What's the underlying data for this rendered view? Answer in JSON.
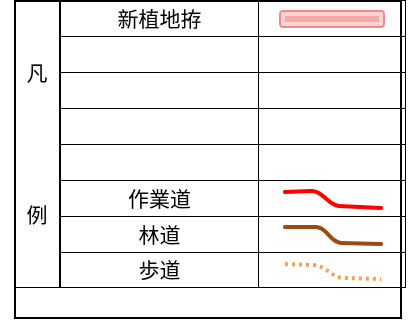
{
  "legend": {
    "heading_chars": [
      "凡",
      "例"
    ],
    "rows": [
      {
        "label": "新植地拵",
        "symbol": "pink-band-icon"
      },
      {
        "label": "",
        "symbol": ""
      },
      {
        "label": "",
        "symbol": ""
      },
      {
        "label": "",
        "symbol": ""
      },
      {
        "label": "",
        "symbol": ""
      },
      {
        "label": "作業道",
        "symbol": "red-road-icon"
      },
      {
        "label": "林道",
        "symbol": "brown-road-icon"
      },
      {
        "label": "歩道",
        "symbol": "orange-dotted-path-icon"
      }
    ]
  },
  "colors": {
    "new_planting": "#f7a9aa",
    "work_road": "#ff0000",
    "forest_road": "#9b4a12",
    "footpath": "#f4a24c"
  }
}
